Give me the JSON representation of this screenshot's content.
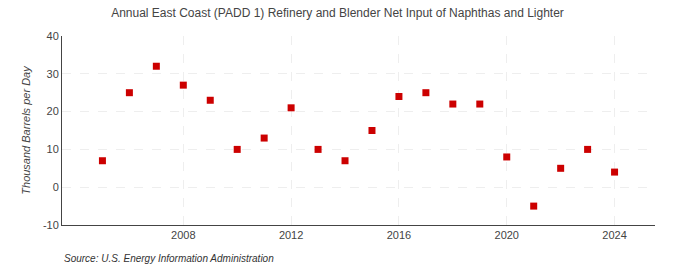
{
  "chart_data": {
    "type": "scatter",
    "title": "Annual East Coast (PADD 1) Refinery and Blender Net Input of Naphthas and Lighter",
    "ylabel": "Thousand Barrels per Day",
    "annotations": [
      "Source: U.S. Energy Information Administration"
    ],
    "x": [
      2005,
      2006,
      2007,
      2008,
      2009,
      2010,
      2011,
      2012,
      2013,
      2014,
      2015,
      2016,
      2017,
      2018,
      2019,
      2020,
      2021,
      2022,
      2023,
      2024
    ],
    "values": [
      7,
      25,
      32,
      27,
      23,
      10,
      13,
      21,
      10,
      7,
      15,
      24,
      25,
      22,
      22,
      8,
      -5,
      5,
      10,
      4
    ],
    "color": "#cc0000",
    "marker": "square",
    "xlim": [
      2003.5,
      2025.5
    ],
    "ylim": [
      -10,
      40
    ],
    "xticks": [
      2008,
      2012,
      2016,
      2020,
      2024
    ],
    "yticks": [
      -10,
      0,
      10,
      20,
      30,
      40
    ],
    "grid": true
  }
}
